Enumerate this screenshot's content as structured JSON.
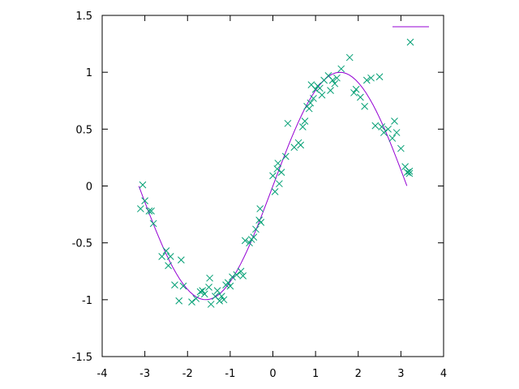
{
  "chart_data": {
    "type": "scatter",
    "title": "",
    "xlabel": "",
    "ylabel": "",
    "xlim": [
      -4,
      4
    ],
    "ylim": [
      -1.5,
      1.5
    ],
    "x_ticks": [
      "-4",
      "-3",
      "-2",
      "-1",
      "0",
      "1",
      "2",
      "3",
      "4"
    ],
    "y_ticks": [
      "-1.5",
      "-1",
      "-0.5",
      "0",
      "0.5",
      "1",
      "1.5"
    ],
    "grid": false,
    "legend_position": "top-right",
    "series": [
      {
        "kind": "points",
        "marker": "x",
        "color": "#009e73",
        "x": [
          -3.1,
          -3.05,
          -3.0,
          -2.9,
          -2.85,
          -2.8,
          -2.6,
          -2.5,
          -2.45,
          -2.4,
          -2.3,
          -2.2,
          -2.15,
          -2.1,
          -1.9,
          -1.8,
          -1.7,
          -1.65,
          -1.6,
          -1.5,
          -1.48,
          -1.45,
          -1.35,
          -1.3,
          -1.25,
          -1.2,
          -1.15,
          -1.1,
          -1.05,
          -1.0,
          -0.95,
          -0.85,
          -0.75,
          -0.7,
          -0.65,
          -0.55,
          -0.5,
          -0.45,
          -0.4,
          -0.32,
          -0.3,
          -0.28,
          0.0,
          0.05,
          0.1,
          0.12,
          0.15,
          0.2,
          0.3,
          0.35,
          0.5,
          0.6,
          0.65,
          0.7,
          0.75,
          0.8,
          0.85,
          0.88,
          0.9,
          0.95,
          1.0,
          1.05,
          1.1,
          1.15,
          1.2,
          1.3,
          1.35,
          1.4,
          1.45,
          1.5,
          1.6,
          1.8,
          1.9,
          1.95,
          2.05,
          2.15,
          2.2,
          2.3,
          2.4,
          2.5,
          2.55,
          2.6,
          2.7,
          2.8,
          2.85,
          2.9,
          3.0,
          3.1,
          3.15,
          3.2,
          3.2
        ],
        "y": [
          -0.2,
          0.01,
          -0.13,
          -0.22,
          -0.22,
          -0.33,
          -0.62,
          -0.57,
          -0.7,
          -0.62,
          -0.87,
          -1.01,
          -0.65,
          -0.88,
          -1.02,
          -0.99,
          -0.93,
          -0.92,
          -0.95,
          -0.89,
          -0.81,
          -1.04,
          -0.97,
          -0.92,
          -1.01,
          -0.97,
          -1.0,
          -0.87,
          -0.85,
          -0.88,
          -0.8,
          -0.78,
          -0.75,
          -0.79,
          -0.48,
          -0.5,
          -0.47,
          -0.45,
          -0.38,
          -0.3,
          -0.2,
          -0.32,
          0.09,
          -0.05,
          0.15,
          0.2,
          0.02,
          0.12,
          0.26,
          0.55,
          0.34,
          0.38,
          0.36,
          0.52,
          0.57,
          0.7,
          0.68,
          0.73,
          0.89,
          0.77,
          0.85,
          0.88,
          0.86,
          0.8,
          0.93,
          0.97,
          0.84,
          0.93,
          0.9,
          0.95,
          1.03,
          1.13,
          0.82,
          0.85,
          0.78,
          0.7,
          0.93,
          0.95,
          0.53,
          0.96,
          0.52,
          0.47,
          0.5,
          0.42,
          0.57,
          0.47,
          0.33,
          0.17,
          0.12,
          0.11,
          0.13
        ]
      },
      {
        "kind": "line",
        "color": "#9400d3",
        "samples": 80,
        "x_range": [
          -3.14,
          3.14
        ],
        "function": "sin(x)"
      }
    ]
  }
}
